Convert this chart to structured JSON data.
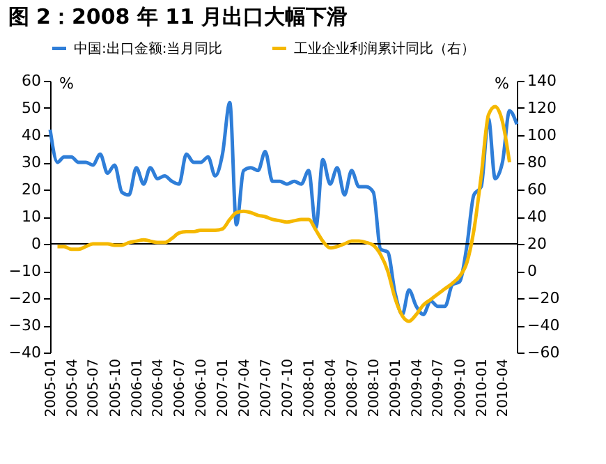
{
  "chart_data": {
    "type": "line",
    "title": "图 2：2008 年 11 月出口大幅下滑",
    "ylabel": "%",
    "y2label": "%",
    "legend": "top",
    "grid": false,
    "marker": "none",
    "line_style": "solid",
    "xlim": [
      "2005-01",
      "2010-06"
    ],
    "xticks": [
      "2005-01",
      "2005-04",
      "2005-07",
      "2005-10",
      "2006-01",
      "2006-04",
      "2006-07",
      "2006-10",
      "2007-01",
      "2007-04",
      "2007-07",
      "2007-10",
      "2008-01",
      "2008-04",
      "2008-07",
      "2008-10",
      "2009-01",
      "2009-04",
      "2009-07",
      "2009-10",
      "2010-01",
      "2010-04"
    ],
    "ylim": [
      -40,
      60
    ],
    "yticks": [
      -40,
      -30,
      -20,
      -10,
      0,
      10,
      20,
      30,
      40,
      50,
      60
    ],
    "ref_lines": [
      {
        "axis": "y",
        "value": 0,
        "color": "#000000",
        "line_style": "solid"
      }
    ],
    "y2lim": [
      -60,
      140
    ],
    "y2ticks": [
      -60,
      -40,
      -20,
      0,
      20,
      40,
      60,
      80,
      100,
      120,
      140
    ],
    "series": [
      {
        "name": "中国:出口金额:当月同比",
        "color": "#2f7ed8",
        "x": [
          "2005-01",
          "2005-02",
          "2005-03",
          "2005-04",
          "2005-05",
          "2005-06",
          "2005-07",
          "2005-08",
          "2005-09",
          "2005-10",
          "2005-11",
          "2005-12",
          "2006-01",
          "2006-02",
          "2006-03",
          "2006-04",
          "2006-05",
          "2006-06",
          "2006-07",
          "2006-08",
          "2006-09",
          "2006-10",
          "2006-11",
          "2006-12",
          "2007-01",
          "2007-02",
          "2007-03",
          "2007-04",
          "2007-05",
          "2007-06",
          "2007-07",
          "2007-08",
          "2007-09",
          "2007-10",
          "2007-11",
          "2007-12",
          "2008-01",
          "2008-02",
          "2008-03",
          "2008-04",
          "2008-05",
          "2008-06",
          "2008-07",
          "2008-08",
          "2008-09",
          "2008-10",
          "2008-11",
          "2008-12",
          "2009-01",
          "2009-02",
          "2009-03",
          "2009-04",
          "2009-05",
          "2009-06",
          "2009-07",
          "2009-08",
          "2009-09",
          "2009-10",
          "2009-11",
          "2009-12",
          "2010-01",
          "2010-02",
          "2010-03",
          "2010-04",
          "2010-05",
          "2010-06"
        ],
        "values": [
          42,
          30,
          32,
          32,
          30,
          30,
          29,
          33,
          26,
          29,
          19,
          18,
          28,
          22,
          28,
          24,
          25,
          23,
          22,
          33,
          30,
          30,
          32,
          25,
          33,
          52,
          7,
          27,
          28,
          27,
          34,
          23,
          23,
          22,
          23,
          22,
          27,
          6,
          31,
          22,
          28,
          18,
          27,
          21,
          21,
          19,
          -2,
          -3,
          -18,
          -26,
          -17,
          -23,
          -26,
          -21,
          -23,
          -23,
          -15,
          -14,
          -1,
          18,
          21,
          46,
          24,
          30,
          49,
          44
        ]
      },
      {
        "name": "工业企业利润累计同比（右）",
        "color": "#f5b800",
        "axis": "y2",
        "x": [
          "2005-02",
          "2005-03",
          "2005-04",
          "2005-05",
          "2005-06",
          "2005-07",
          "2005-08",
          "2005-09",
          "2005-10",
          "2005-11",
          "2005-12",
          "2006-01",
          "2006-02",
          "2006-03",
          "2006-04",
          "2006-05",
          "2006-06",
          "2006-07",
          "2006-08",
          "2006-09",
          "2006-10",
          "2006-11",
          "2006-12",
          "2007-01",
          "2007-02",
          "2007-03",
          "2007-04",
          "2007-05",
          "2007-06",
          "2007-07",
          "2007-08",
          "2007-09",
          "2007-10",
          "2007-11",
          "2007-12",
          "2008-01",
          "2008-02",
          "2008-03",
          "2008-04",
          "2008-05",
          "2008-06",
          "2008-07",
          "2008-08",
          "2008-09",
          "2008-10",
          "2008-11",
          "2008-12",
          "2009-01",
          "2009-02",
          "2009-03",
          "2009-04",
          "2009-05",
          "2009-06",
          "2009-07",
          "2009-08",
          "2009-09",
          "2009-10",
          "2009-11",
          "2009-12",
          "2010-01",
          "2010-02",
          "2010-03",
          "2010-04",
          "2010-05"
        ],
        "values": [
          18,
          18,
          16,
          16,
          18,
          20,
          20,
          20,
          19,
          19,
          21,
          22,
          23,
          22,
          21,
          21,
          24,
          28,
          29,
          29,
          30,
          30,
          30,
          31,
          38,
          43,
          44,
          43,
          41,
          40,
          38,
          37,
          36,
          37,
          38,
          38,
          30,
          22,
          17,
          18,
          20,
          22,
          22,
          21,
          19,
          12,
          0,
          -20,
          -33,
          -37,
          -32,
          -25,
          -21,
          -17,
          -13,
          -9,
          -4,
          6,
          30,
          70,
          115,
          121,
          110,
          80
        ]
      }
    ]
  }
}
